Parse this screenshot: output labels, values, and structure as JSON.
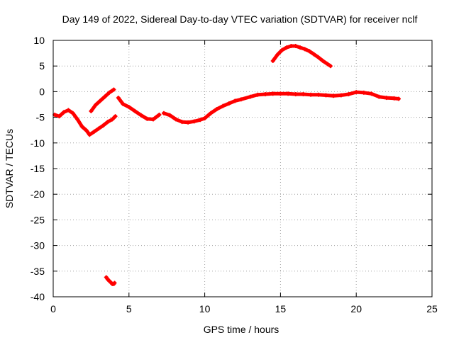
{
  "chart_data": {
    "type": "scatter",
    "title": "Day 149 of 2022, Sidereal Day-to-day VTEC variation (SDTVAR) for receiver nclf",
    "xlabel": "GPS time / hours",
    "ylabel": "SDTVAR / TECUs",
    "xlim": [
      0,
      25
    ],
    "ylim": [
      -40,
      10
    ],
    "xticks": [
      0,
      5,
      10,
      15,
      20,
      25
    ],
    "xtick_labels": [
      "0",
      "5",
      "10",
      "15",
      "20",
      "25"
    ],
    "yticks": [
      -40,
      -35,
      -30,
      -25,
      -20,
      -15,
      -10,
      -5,
      0,
      5,
      10
    ],
    "ytick_labels": [
      "-40",
      "-35",
      "-30",
      "-25",
      "-20",
      "-15",
      "-10",
      "-5",
      "0",
      "5",
      "10"
    ],
    "grid": true,
    "color": "#ff0000",
    "series": [
      {
        "name": "s1",
        "x": [
          0.1,
          0.4,
          0.7,
          1.0,
          1.3,
          1.6,
          1.9,
          2.2,
          2.4,
          2.7,
          3.0,
          3.3,
          3.6,
          3.9,
          4.1
        ],
        "y": [
          -4.5,
          -4.8,
          -4.0,
          -3.6,
          -4.2,
          -5.4,
          -6.8,
          -7.6,
          -8.4,
          -7.8,
          -7.2,
          -6.6,
          -5.9,
          -5.4,
          -4.8
        ]
      },
      {
        "name": "s2",
        "x": [
          2.5,
          2.8,
          3.1,
          3.4,
          3.7,
          4.0
        ],
        "y": [
          -3.8,
          -2.6,
          -1.8,
          -1.0,
          -0.2,
          0.4
        ]
      },
      {
        "name": "s3",
        "x": [
          4.3,
          4.6,
          5.0,
          5.4,
          5.8,
          6.2,
          6.6,
          7.0
        ],
        "y": [
          -1.2,
          -2.4,
          -3.0,
          -3.8,
          -4.6,
          -5.3,
          -5.4,
          -4.5
        ]
      },
      {
        "name": "s4",
        "x": [
          7.3,
          7.7,
          8.1,
          8.5,
          8.9,
          9.3,
          9.7,
          10.0,
          10.4,
          10.8,
          11.2,
          11.6,
          12.0,
          12.4,
          13.0,
          13.5,
          14.0,
          14.5,
          15.0,
          15.5,
          16.0,
          16.5,
          17.0,
          17.5,
          18.0,
          18.5,
          19.0,
          19.5,
          20.0,
          20.5,
          21.0,
          21.5,
          22.0,
          22.5,
          22.8
        ],
        "y": [
          -4.2,
          -4.6,
          -5.4,
          -5.9,
          -6.0,
          -5.8,
          -5.5,
          -5.2,
          -4.2,
          -3.4,
          -2.8,
          -2.3,
          -1.8,
          -1.5,
          -1.0,
          -0.6,
          -0.5,
          -0.4,
          -0.4,
          -0.4,
          -0.5,
          -0.5,
          -0.6,
          -0.6,
          -0.7,
          -0.8,
          -0.7,
          -0.5,
          -0.1,
          -0.2,
          -0.4,
          -1.0,
          -1.2,
          -1.3,
          -1.4
        ]
      },
      {
        "name": "s5",
        "x": [
          14.5,
          14.8,
          15.1,
          15.4,
          15.7,
          16.0,
          16.3,
          16.6,
          16.9,
          17.2,
          17.5,
          17.8,
          18.1,
          18.3
        ],
        "y": [
          6.0,
          7.2,
          8.1,
          8.6,
          8.9,
          8.9,
          8.6,
          8.3,
          7.9,
          7.3,
          6.7,
          6.0,
          5.4,
          5.0
        ]
      },
      {
        "name": "s6",
        "x": [
          3.5,
          3.6,
          3.7,
          3.8,
          3.9,
          4.0,
          4.05
        ],
        "y": [
          -36.2,
          -36.6,
          -36.9,
          -37.2,
          -37.5,
          -37.5,
          -37.3
        ]
      }
    ]
  }
}
